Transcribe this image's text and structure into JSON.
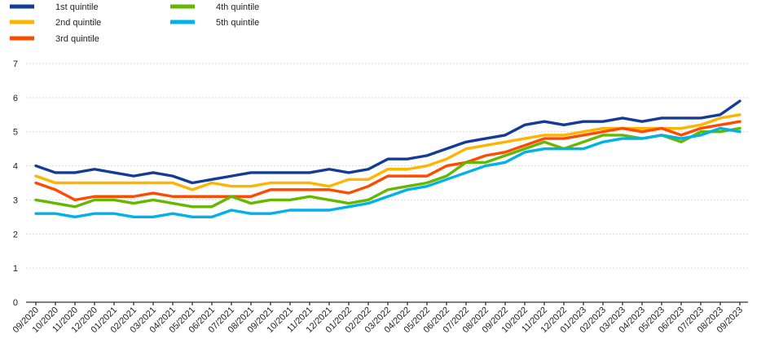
{
  "chart_data": {
    "type": "line",
    "title": "",
    "xlabel": "",
    "ylabel": "",
    "ylim": [
      0,
      7
    ],
    "yticks": [
      0,
      1,
      2,
      3,
      4,
      5,
      6,
      7
    ],
    "grid": "horizontal",
    "legend": "top-left",
    "categories": [
      "09/2020",
      "10/2020",
      "11/2020",
      "12/2020",
      "01/2021",
      "02/2021",
      "03/2021",
      "04/2021",
      "05/2021",
      "06/2021",
      "07/2021",
      "08/2021",
      "09/2021",
      "10/2021",
      "11/2021",
      "12/2021",
      "01/2022",
      "02/2022",
      "03/2022",
      "04/2022",
      "05/2022",
      "06/2022",
      "07/2022",
      "08/2022",
      "09/2022",
      "10/2022",
      "11/2022",
      "12/2022",
      "01/2023",
      "02/2023",
      "03/2023",
      "04/2023",
      "05/2023",
      "06/2023",
      "07/2023",
      "08/2023",
      "09/2023"
    ],
    "series": [
      {
        "name": "1st quintile",
        "color": "#143c96",
        "values": [
          4.0,
          3.8,
          3.8,
          3.9,
          3.8,
          3.7,
          3.8,
          3.7,
          3.5,
          3.6,
          3.7,
          3.8,
          3.8,
          3.8,
          3.8,
          3.9,
          3.8,
          3.9,
          4.2,
          4.2,
          4.3,
          4.5,
          4.7,
          4.8,
          4.9,
          5.2,
          5.3,
          5.2,
          5.3,
          5.3,
          5.4,
          5.3,
          5.4,
          5.4,
          5.4,
          5.5,
          5.9
        ]
      },
      {
        "name": "2nd quintile",
        "color": "#ffb400",
        "values": [
          3.7,
          3.5,
          3.5,
          3.5,
          3.5,
          3.5,
          3.5,
          3.5,
          3.3,
          3.5,
          3.4,
          3.4,
          3.5,
          3.5,
          3.5,
          3.4,
          3.6,
          3.6,
          3.9,
          3.9,
          4.0,
          4.2,
          4.5,
          4.6,
          4.7,
          4.8,
          4.9,
          4.9,
          5.0,
          5.1,
          5.1,
          5.1,
          5.1,
          5.1,
          5.2,
          5.4,
          5.5
        ]
      },
      {
        "name": "3rd quintile",
        "color": "#ff4b00",
        "values": [
          3.5,
          3.3,
          3.0,
          3.1,
          3.1,
          3.1,
          3.2,
          3.1,
          3.1,
          3.1,
          3.1,
          3.1,
          3.3,
          3.3,
          3.3,
          3.3,
          3.2,
          3.4,
          3.7,
          3.7,
          3.7,
          4.0,
          4.1,
          4.3,
          4.4,
          4.6,
          4.8,
          4.8,
          4.9,
          5.0,
          5.1,
          5.0,
          5.1,
          4.9,
          5.1,
          5.2,
          5.3
        ]
      },
      {
        "name": "4th quintile",
        "color": "#65b800",
        "values": [
          3.0,
          2.9,
          2.8,
          3.0,
          3.0,
          2.9,
          3.0,
          2.9,
          2.8,
          2.8,
          3.1,
          2.9,
          3.0,
          3.0,
          3.1,
          3.0,
          2.9,
          3.0,
          3.3,
          3.4,
          3.5,
          3.7,
          4.1,
          4.1,
          4.3,
          4.5,
          4.7,
          4.5,
          4.7,
          4.9,
          4.9,
          4.8,
          4.9,
          4.7,
          5.0,
          5.0,
          5.1
        ]
      },
      {
        "name": "5th quintile",
        "color": "#00b1ea",
        "values": [
          2.6,
          2.6,
          2.5,
          2.6,
          2.6,
          2.5,
          2.5,
          2.6,
          2.5,
          2.5,
          2.7,
          2.6,
          2.6,
          2.7,
          2.7,
          2.7,
          2.8,
          2.9,
          3.1,
          3.3,
          3.4,
          3.6,
          3.8,
          4.0,
          4.1,
          4.4,
          4.5,
          4.5,
          4.5,
          4.7,
          4.8,
          4.8,
          4.9,
          4.8,
          4.9,
          5.1,
          5.0
        ]
      }
    ]
  }
}
